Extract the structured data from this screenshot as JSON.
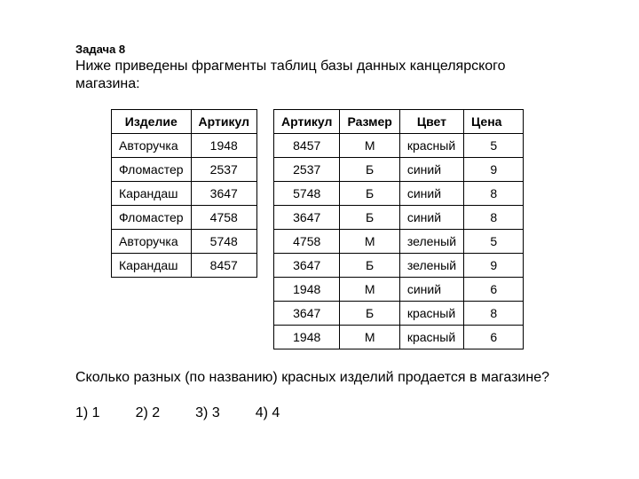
{
  "task_number": "Задача 8",
  "description": "Ниже приведены фрагменты таблиц базы данных канцелярского магазина:",
  "table1": {
    "columns": [
      "Изделие",
      "Артикул"
    ],
    "rows": [
      [
        "Авторучка",
        "1948"
      ],
      [
        "Фломастер",
        "2537"
      ],
      [
        "Карандаш",
        "3647"
      ],
      [
        "Фломастер",
        "4758"
      ],
      [
        "Авторучка",
        "5748"
      ],
      [
        "Карандаш",
        "8457"
      ]
    ]
  },
  "table2": {
    "columns": [
      "Артикул",
      "Размер",
      "Цвет",
      "Цена"
    ],
    "rows": [
      [
        "8457",
        "М",
        "красный",
        "5"
      ],
      [
        "2537",
        "Б",
        "синий",
        "9"
      ],
      [
        "5748",
        "Б",
        "синий",
        "8"
      ],
      [
        "3647",
        "Б",
        "синий",
        "8"
      ],
      [
        "4758",
        "М",
        "зеленый",
        "5"
      ],
      [
        "3647",
        "Б",
        "зеленый",
        "9"
      ],
      [
        "1948",
        "М",
        "синий",
        "6"
      ],
      [
        "3647",
        "Б",
        "красный",
        "8"
      ],
      [
        "1948",
        "М",
        "красный",
        "6"
      ]
    ]
  },
  "question": "Сколько разных (по названию) красных изделий продается в магазине?",
  "answers": [
    "1) 1",
    "2) 2",
    "3) 3",
    "4) 4"
  ],
  "style": {
    "background_color": "#ffffff",
    "text_color": "#000000",
    "border_color": "#000000",
    "base_font_size": 14,
    "heading_font_size": 16,
    "font_family": "Arial"
  }
}
